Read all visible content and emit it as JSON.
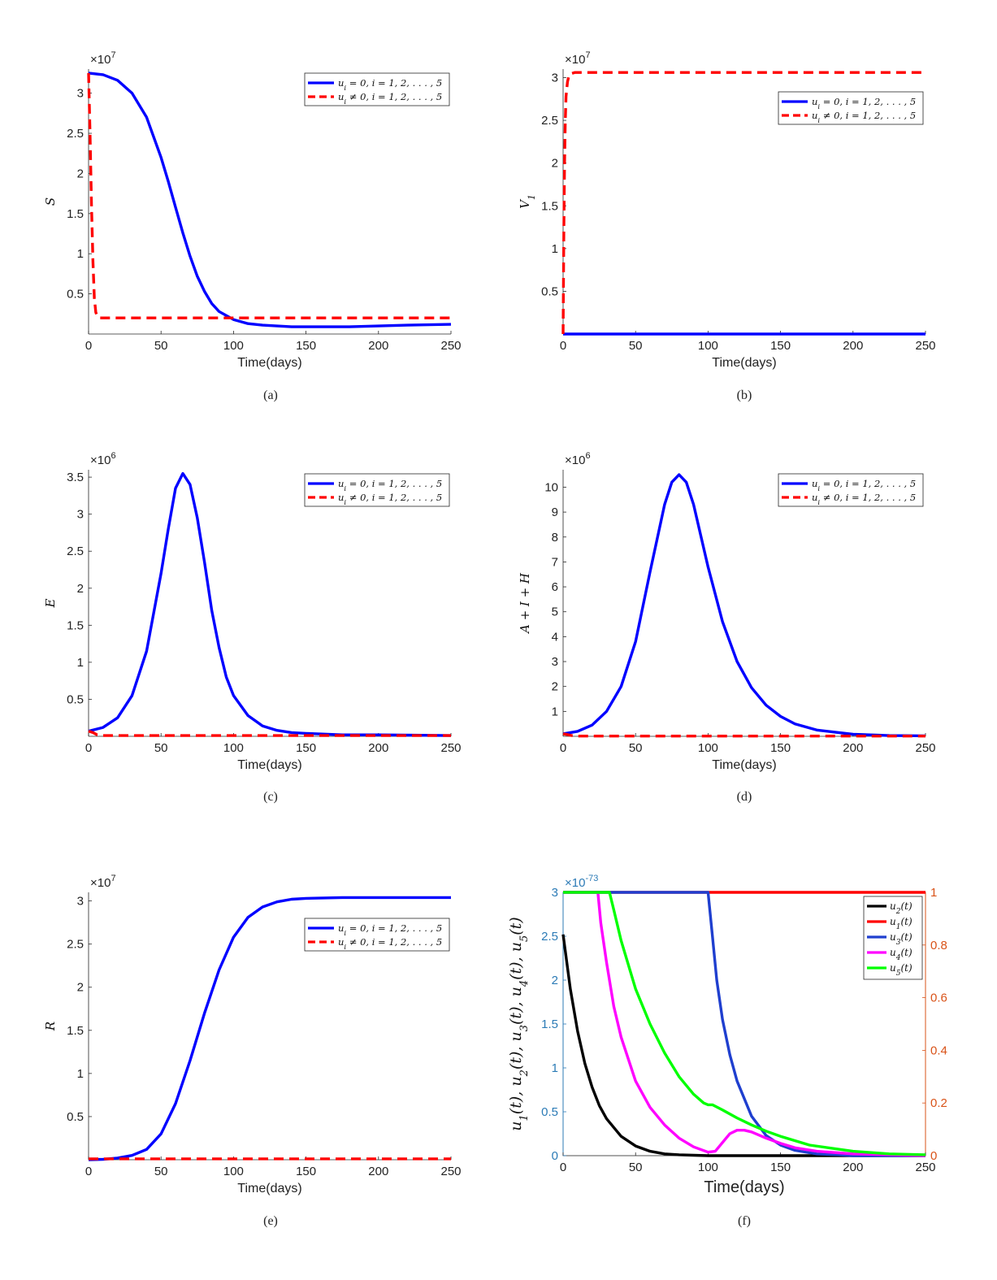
{
  "colors": {
    "blue": "#0000ff",
    "red": "#ff0000",
    "black": "#000000",
    "magenta": "#ff00ff",
    "green": "#00ff00",
    "navy": "#1f3fcf",
    "left_axis": "#2c7bb6",
    "right_axis": "#d95319"
  },
  "chart_data": [
    {
      "type": "line",
      "caption": "(a)",
      "xlabel": "Time(days)",
      "ylabel": "S",
      "exponent": "7",
      "xlim": [
        0,
        250
      ],
      "ylim": [
        0,
        3.3
      ],
      "xticks": [
        "0",
        "50",
        "100",
        "150",
        "200",
        "250"
      ],
      "yticks": [
        "0.5",
        "1",
        "1.5",
        "2",
        "2.5",
        "3"
      ],
      "legend_position": "top-right",
      "series": [
        {
          "name": "u_i = 0,  i = 1, 2, . . . , 5",
          "x": [
            0,
            10,
            20,
            30,
            40,
            50,
            55,
            60,
            65,
            70,
            75,
            80,
            85,
            90,
            100,
            110,
            120,
            140,
            160,
            180,
            200,
            220,
            250
          ],
          "y": [
            3.25,
            3.23,
            3.16,
            3.0,
            2.7,
            2.2,
            1.9,
            1.58,
            1.26,
            0.97,
            0.72,
            0.53,
            0.38,
            0.28,
            0.18,
            0.13,
            0.11,
            0.09,
            0.09,
            0.09,
            0.1,
            0.11,
            0.12
          ]
        },
        {
          "name": "u_i ≠ 0,  i = 1, 2, . . . , 5",
          "x": [
            0,
            1,
            2,
            3,
            4,
            5,
            6,
            8,
            250
          ],
          "y": [
            3.25,
            2.5,
            1.6,
            0.9,
            0.45,
            0.27,
            0.22,
            0.2,
            0.2
          ]
        }
      ]
    },
    {
      "type": "line",
      "caption": "(b)",
      "xlabel": "Time(days)",
      "ylabel": "V1",
      "exponent": "7",
      "xlim": [
        0,
        250
      ],
      "ylim": [
        0,
        3.1
      ],
      "xticks": [
        "0",
        "50",
        "100",
        "150",
        "200",
        "250"
      ],
      "yticks": [
        "0.5",
        "1",
        "1.5",
        "2",
        "2.5",
        "3"
      ],
      "legend_position": "upper-right",
      "series": [
        {
          "name": "u_i = 0,  i = 1, 2, . . . , 5",
          "x": [
            0,
            250
          ],
          "y": [
            0,
            0
          ]
        },
        {
          "name": "u_i ≠ 0,  i = 1, 2, . . . , 5",
          "x": [
            0,
            0.5,
            1,
            1.5,
            2,
            3,
            4,
            6,
            8,
            250
          ],
          "y": [
            0,
            1.2,
            2.0,
            2.5,
            2.78,
            2.95,
            3.02,
            3.05,
            3.06,
            3.06
          ]
        }
      ]
    },
    {
      "type": "line",
      "caption": "(c)",
      "xlabel": "Time(days)",
      "ylabel": "E",
      "exponent": "6",
      "xlim": [
        0,
        250
      ],
      "ylim": [
        0,
        3.6
      ],
      "xticks": [
        "0",
        "50",
        "100",
        "150",
        "200",
        "250"
      ],
      "yticks": [
        "0.5",
        "1",
        "1.5",
        "2",
        "2.5",
        "3",
        "3.5"
      ],
      "legend_position": "top-right",
      "series": [
        {
          "name": "u_i = 0,  i = 1, 2, . . . , 5",
          "x": [
            0,
            10,
            20,
            30,
            40,
            50,
            55,
            60,
            65,
            70,
            75,
            80,
            85,
            90,
            95,
            100,
            110,
            120,
            130,
            140,
            150,
            175,
            200,
            250
          ],
          "y": [
            0.07,
            0.12,
            0.25,
            0.55,
            1.15,
            2.2,
            2.8,
            3.35,
            3.55,
            3.4,
            2.95,
            2.35,
            1.7,
            1.2,
            0.8,
            0.55,
            0.28,
            0.14,
            0.08,
            0.05,
            0.04,
            0.02,
            0.02,
            0.01
          ]
        },
        {
          "name": "u_i ≠ 0,  i = 1, 2, . . . , 5",
          "x": [
            0,
            3,
            6,
            10,
            250
          ],
          "y": [
            0.07,
            0.05,
            0.02,
            0.01,
            0.01
          ]
        }
      ]
    },
    {
      "type": "line",
      "caption": "(d)",
      "xlabel": "Time(days)",
      "ylabel": "A + I + H",
      "exponent": "6",
      "xlim": [
        0,
        250
      ],
      "ylim": [
        0,
        10.7
      ],
      "xticks": [
        "0",
        "50",
        "100",
        "150",
        "200",
        "250"
      ],
      "yticks": [
        "1",
        "2",
        "3",
        "4",
        "5",
        "6",
        "7",
        "8",
        "9",
        "10"
      ],
      "legend_position": "top-right",
      "series": [
        {
          "name": "u_i = 0,  i = 1, 2, . . . , 5",
          "x": [
            0,
            10,
            20,
            30,
            40,
            50,
            60,
            70,
            75,
            80,
            85,
            90,
            100,
            110,
            120,
            130,
            140,
            150,
            160,
            175,
            200,
            225,
            250
          ],
          "y": [
            0.1,
            0.2,
            0.45,
            1.0,
            2.0,
            3.8,
            6.6,
            9.3,
            10.2,
            10.5,
            10.2,
            9.3,
            6.8,
            4.6,
            3.0,
            1.95,
            1.25,
            0.8,
            0.5,
            0.25,
            0.08,
            0.03,
            0.02
          ]
        },
        {
          "name": "u_i ≠ 0,  i = 1, 2, . . . , 5",
          "x": [
            0,
            3,
            6,
            10,
            250
          ],
          "y": [
            0.1,
            0.07,
            0.03,
            0.01,
            0.01
          ]
        }
      ]
    },
    {
      "type": "line",
      "caption": "(e)",
      "xlabel": "Time(days)",
      "ylabel": "R",
      "exponent": "7",
      "xlim": [
        0,
        250
      ],
      "ylim": [
        0,
        3.1
      ],
      "xticks": [
        "0",
        "50",
        "100",
        "150",
        "200",
        "250"
      ],
      "yticks": [
        "0.5",
        "1",
        "1.5",
        "2",
        "2.5",
        "3"
      ],
      "legend_position": "upper-right",
      "series": [
        {
          "name": "u_i = 0,  i = 1, 2, . . . , 5",
          "x": [
            0,
            10,
            20,
            30,
            40,
            50,
            60,
            70,
            80,
            90,
            100,
            110,
            120,
            130,
            140,
            150,
            175,
            200,
            250
          ],
          "y": [
            0,
            0.005,
            0.02,
            0.05,
            0.12,
            0.3,
            0.65,
            1.15,
            1.7,
            2.2,
            2.58,
            2.81,
            2.93,
            2.99,
            3.02,
            3.03,
            3.04,
            3.04,
            3.04
          ]
        },
        {
          "name": "u_i ≠ 0,  i = 1, 2, . . . , 5",
          "x": [
            0,
            250
          ],
          "y": [
            0.01,
            0.01
          ]
        }
      ]
    },
    {
      "type": "line",
      "caption": "(f)",
      "xlabel": "Time(days)",
      "ylabel": "u1(t), u2(t), u3(t), u4(t), u5(t)",
      "exponent": "-73",
      "xlim": [
        0,
        250
      ],
      "ylim": [
        0,
        3
      ],
      "ylim_right": [
        0,
        1
      ],
      "xticks": [
        "0",
        "50",
        "100",
        "150",
        "200",
        "250"
      ],
      "yticks": [
        "0",
        "0.5",
        "1",
        "1.5",
        "2",
        "2.5",
        "3"
      ],
      "yticks_right": [
        "0",
        "0.2",
        "0.4",
        "0.6",
        "0.8",
        "1"
      ],
      "legend_position": "top-right",
      "series": [
        {
          "name": "u2(t)",
          "axis": "left",
          "x": [
            0,
            5,
            10,
            15,
            20,
            25,
            30,
            40,
            50,
            60,
            70,
            80,
            90,
            100,
            250
          ],
          "y": [
            2.52,
            1.9,
            1.42,
            1.05,
            0.78,
            0.57,
            0.42,
            0.22,
            0.11,
            0.05,
            0.02,
            0.01,
            0.005,
            0,
            0
          ]
        },
        {
          "name": "u1(t)",
          "axis": "right",
          "x": [
            0,
            250
          ],
          "y": [
            1,
            1
          ]
        },
        {
          "name": "u3(t)",
          "axis": "left",
          "x": [
            0,
            100,
            103,
            106,
            110,
            115,
            120,
            130,
            140,
            150,
            160,
            175,
            190,
            200,
            250
          ],
          "y": [
            3,
            3,
            2.5,
            2.0,
            1.55,
            1.15,
            0.85,
            0.45,
            0.23,
            0.12,
            0.06,
            0.02,
            0.01,
            0,
            0
          ]
        },
        {
          "name": "u4(t)",
          "axis": "left",
          "x": [
            0,
            24,
            26,
            30,
            35,
            40,
            50,
            60,
            70,
            80,
            90,
            100,
            105,
            110,
            115,
            120,
            125,
            130,
            140,
            150,
            160,
            175,
            200,
            225,
            250
          ],
          "y": [
            3,
            3,
            2.65,
            2.2,
            1.7,
            1.35,
            0.85,
            0.55,
            0.35,
            0.2,
            0.1,
            0.04,
            0.05,
            0.15,
            0.25,
            0.29,
            0.29,
            0.27,
            0.2,
            0.14,
            0.09,
            0.05,
            0.02,
            0.01,
            0
          ]
        },
        {
          "name": "u5(t)",
          "axis": "left",
          "x": [
            0,
            32,
            35,
            40,
            50,
            60,
            70,
            80,
            90,
            97,
            100,
            103,
            110,
            120,
            130,
            140,
            150,
            170,
            200,
            225,
            250
          ],
          "y": [
            3,
            3,
            2.8,
            2.45,
            1.9,
            1.5,
            1.17,
            0.9,
            0.7,
            0.6,
            0.58,
            0.58,
            0.52,
            0.43,
            0.35,
            0.28,
            0.22,
            0.12,
            0.05,
            0.02,
            0.01
          ]
        }
      ]
    }
  ]
}
